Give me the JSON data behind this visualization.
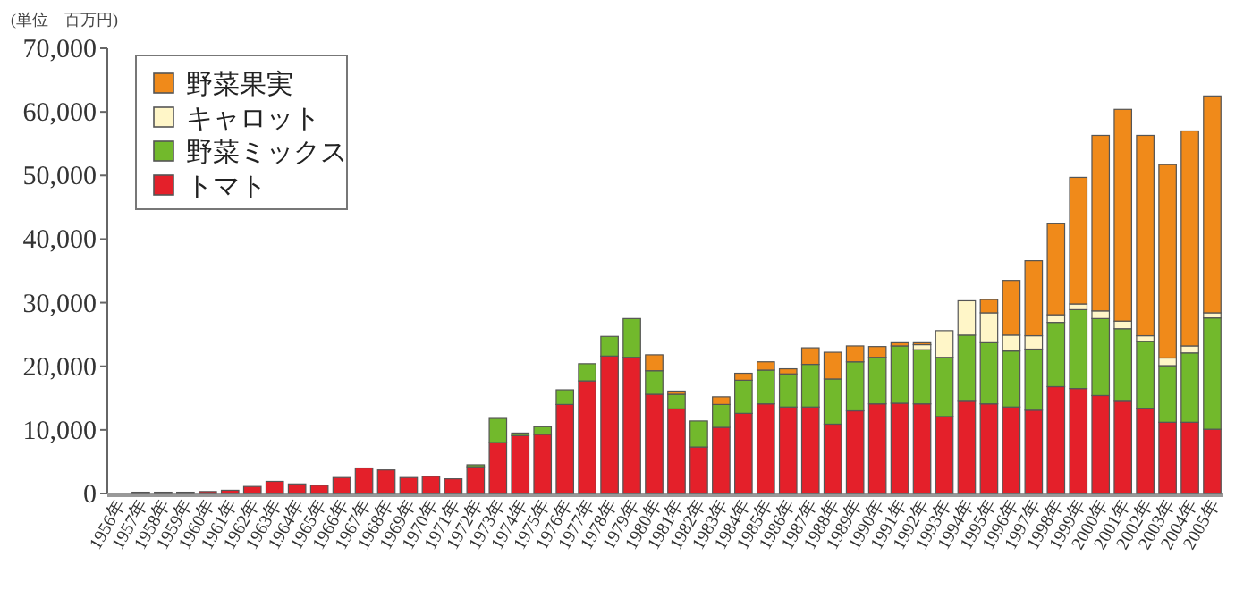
{
  "chart_data": {
    "type": "bar",
    "stacked": true,
    "legend": "top left",
    "annotations": [
      "(単位　百万円)"
    ],
    "ylim": [
      0,
      70000
    ],
    "yticks": [
      {
        "value": 0,
        "label": "0"
      },
      {
        "value": 10000,
        "label": "10,000"
      },
      {
        "value": 20000,
        "label": "20,000"
      },
      {
        "value": 30000,
        "label": "30,000"
      },
      {
        "value": 40000,
        "label": "40,000"
      },
      {
        "value": 50000,
        "label": "50,000"
      },
      {
        "value": 60000,
        "label": "60,000"
      },
      {
        "value": 70000,
        "label": "70,000"
      }
    ],
    "categories": [
      "1956年",
      "1957年",
      "1958年",
      "1959年",
      "1960年",
      "1961年",
      "1962年",
      "1963年",
      "1964年",
      "1965年",
      "1966年",
      "1967年",
      "1968年",
      "1969年",
      "1970年",
      "1971年",
      "1972年",
      "1973年",
      "1974年",
      "1975年",
      "1976年",
      "1977年",
      "1978年",
      "1979年",
      "1980年",
      "1981年",
      "1982年",
      "1983年",
      "1984年",
      "1985年",
      "1986年",
      "1987年",
      "1988年",
      "1989年",
      "1990年",
      "1991年",
      "1992年",
      "1993年",
      "1994年",
      "1995年",
      "1996年",
      "1997年",
      "1998年",
      "1999年",
      "2000年",
      "2001年",
      "2002年",
      "2003年",
      "2004年",
      "2005年"
    ],
    "series": [
      {
        "name": "トマト",
        "color": "#e4202a",
        "values": [
          null,
          200,
          200,
          200,
          300,
          500,
          1100,
          1900,
          1500,
          1300,
          2500,
          4000,
          3700,
          2500,
          2700,
          2300,
          4200,
          8000,
          9100,
          9300,
          14000,
          17700,
          21600,
          21400,
          15600,
          13300,
          7300,
          10400,
          12600,
          14100,
          13600,
          13600,
          10900,
          13000,
          14100,
          14200,
          14100,
          12100,
          14500,
          14100,
          13600,
          13100,
          16800,
          16500,
          15400,
          14500,
          13400,
          11200,
          11200,
          10100
        ]
      },
      {
        "name": "野菜ミックス",
        "color": "#72b92c",
        "values": [
          null,
          null,
          null,
          null,
          null,
          null,
          null,
          null,
          null,
          null,
          null,
          null,
          null,
          null,
          null,
          null,
          300,
          3800,
          400,
          1200,
          2300,
          2700,
          3100,
          6100,
          3700,
          2300,
          4100,
          3600,
          5200,
          5300,
          5200,
          6700,
          7100,
          7700,
          7300,
          9000,
          8500,
          9300,
          10400,
          9600,
          8800,
          9600,
          10100,
          12400,
          12100,
          11400,
          10500,
          8900,
          10900,
          17500
        ]
      },
      {
        "name": "キャロット",
        "color": "#fff6c8",
        "values": [
          null,
          null,
          null,
          null,
          null,
          null,
          null,
          null,
          null,
          null,
          null,
          null,
          null,
          null,
          null,
          null,
          null,
          null,
          null,
          null,
          null,
          null,
          null,
          null,
          null,
          null,
          null,
          null,
          null,
          null,
          null,
          null,
          null,
          null,
          null,
          null,
          800,
          4200,
          5400,
          4700,
          2500,
          2100,
          1200,
          900,
          1200,
          1200,
          900,
          1200,
          1100,
          800
        ]
      },
      {
        "name": "野菜果実",
        "color": "#f08a1a",
        "values": [
          null,
          null,
          null,
          null,
          null,
          null,
          null,
          null,
          null,
          null,
          null,
          null,
          null,
          null,
          null,
          null,
          null,
          null,
          null,
          null,
          null,
          null,
          null,
          null,
          2500,
          500,
          null,
          1200,
          1100,
          1300,
          800,
          2600,
          4200,
          2500,
          1700,
          500,
          300,
          null,
          null,
          2100,
          8600,
          11800,
          14300,
          19900,
          27600,
          33300,
          31500,
          30400,
          33800,
          34100
        ]
      }
    ]
  }
}
